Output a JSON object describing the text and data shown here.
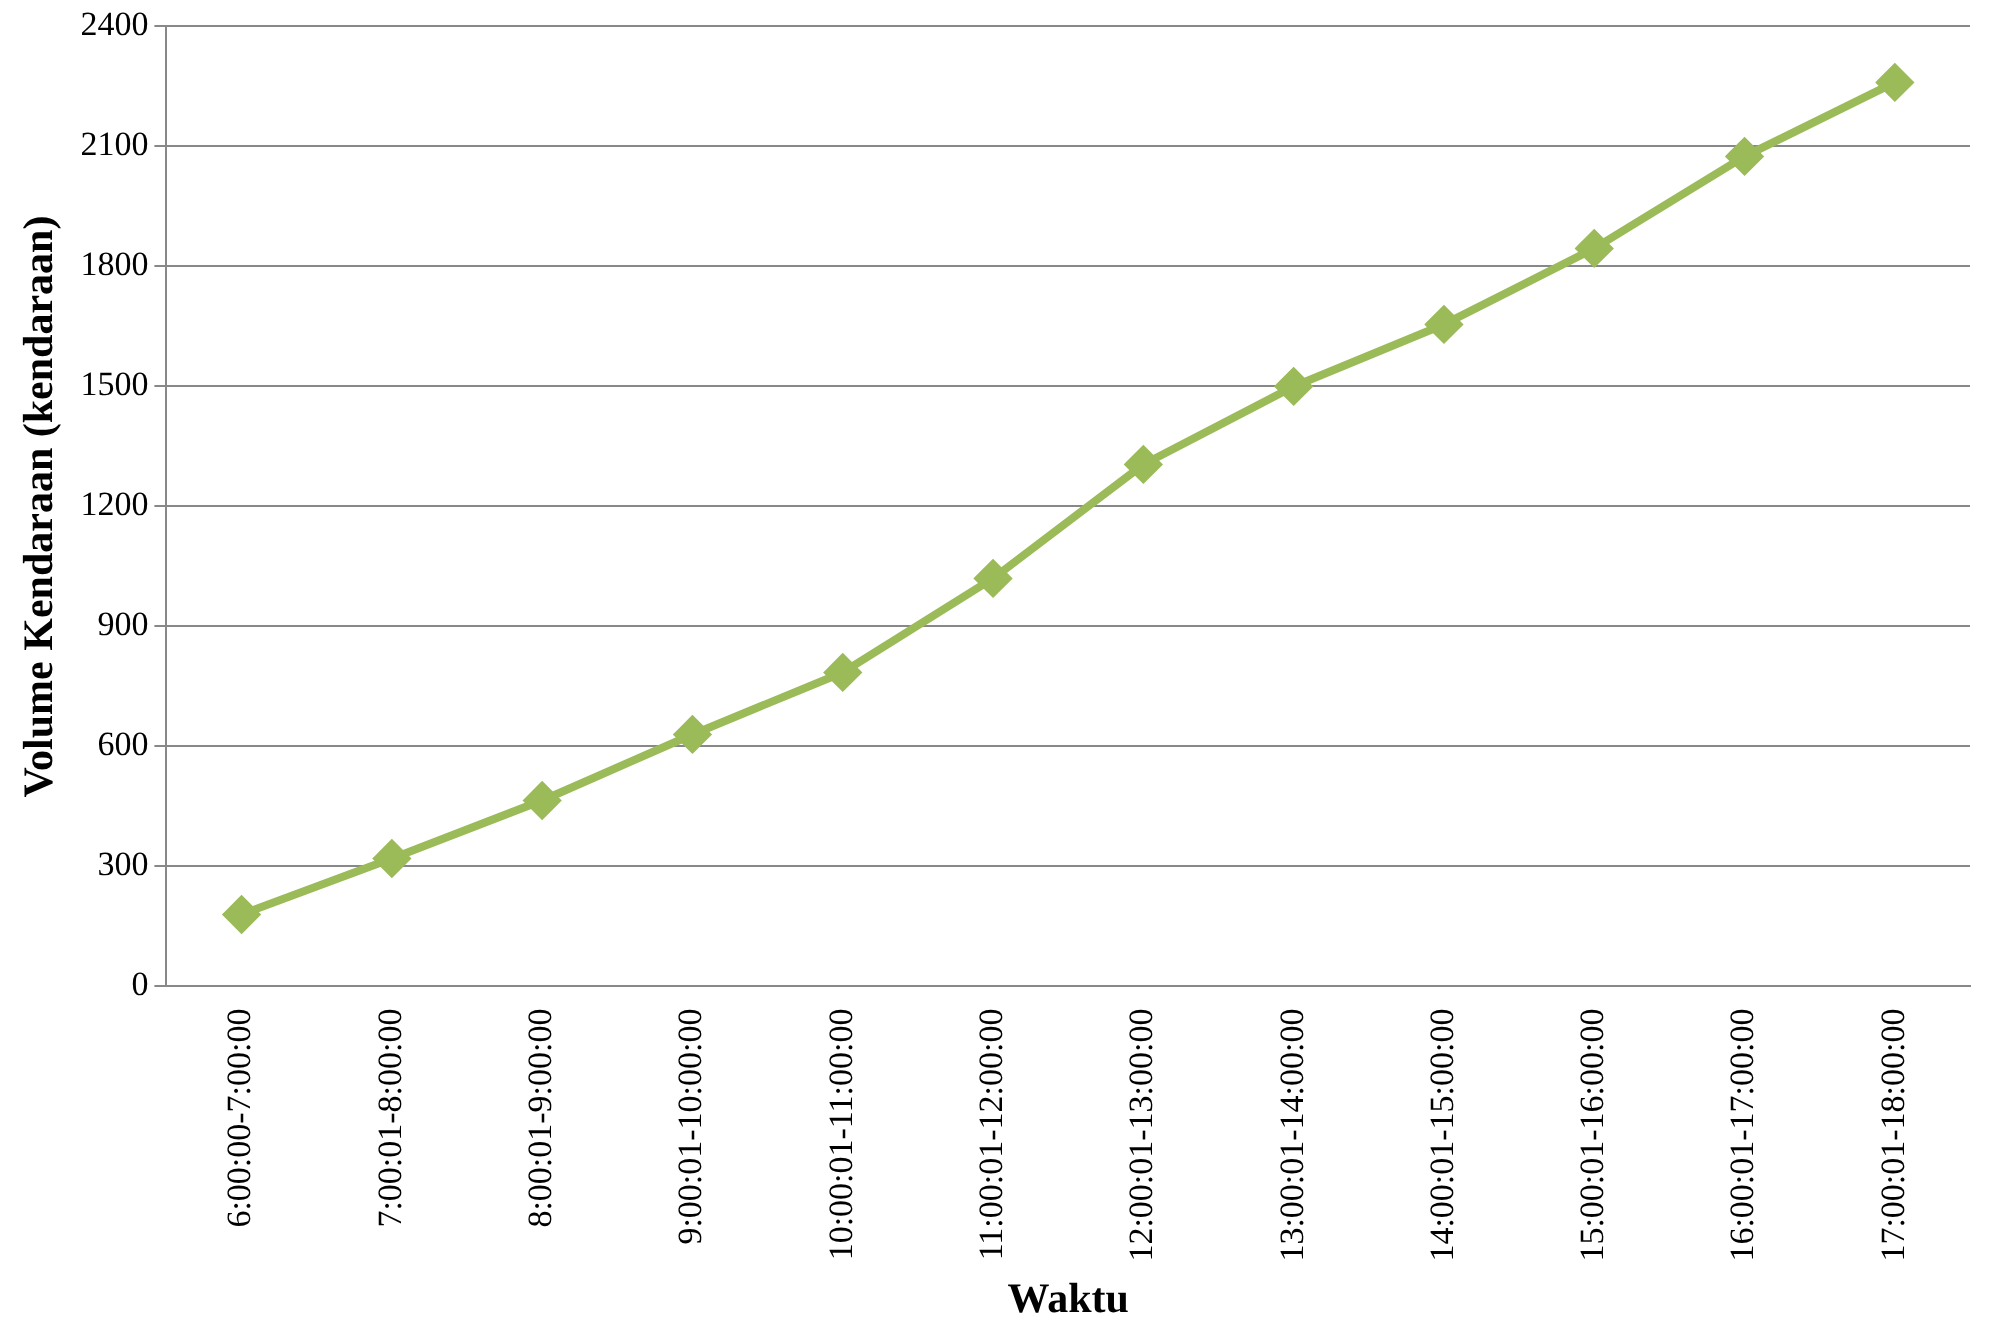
{
  "chart_data": {
    "type": "line",
    "xlabel": "Waktu",
    "ylabel": "Volume Kendaraan (kendaraan)",
    "categories": [
      "6:00:00-7:00:00",
      "7:00:01-8:00:00",
      "8:00:01-9:00:00",
      "9:00:01-10:00:00",
      "10:00:01-11:00:00",
      "11:00:01-12:00:00",
      "12:00:01-13:00:00",
      "13:00:01-14:00:00",
      "14:00:01-15:00:00",
      "15:00:01-16:00:00",
      "16:00:01-17:00:00",
      "17:00:01-18:00:00"
    ],
    "series": [
      {
        "color": "#9bbb59",
        "values": [
          180,
          320,
          465,
          630,
          785,
          1020,
          1305,
          1500,
          1655,
          1845,
          2075,
          2260
        ]
      }
    ],
    "ylim": [
      0,
      2400
    ],
    "yticks": [
      0,
      300,
      600,
      900,
      1200,
      1500,
      1800,
      2100,
      2400
    ],
    "grid": "y",
    "legend": false,
    "marker": "diamond",
    "line_style": "solid"
  }
}
